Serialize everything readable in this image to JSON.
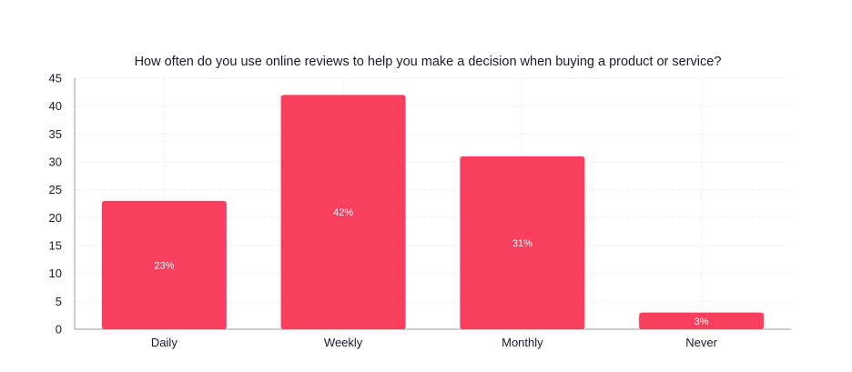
{
  "chart_data": {
    "type": "bar",
    "title": "How often do you use online reviews to help you make a decision when buying a product or service?",
    "categories": [
      "Daily",
      "Weekly",
      "Monthly",
      "Never"
    ],
    "values": [
      23,
      42,
      31,
      3
    ],
    "data_labels": [
      "23%",
      "42%",
      "31%",
      "3%"
    ],
    "ylim": [
      0,
      45
    ],
    "yticks": [
      0,
      5,
      10,
      15,
      20,
      25,
      30,
      35,
      40,
      45
    ],
    "grid": true,
    "bar_color": "#f83f5d"
  }
}
